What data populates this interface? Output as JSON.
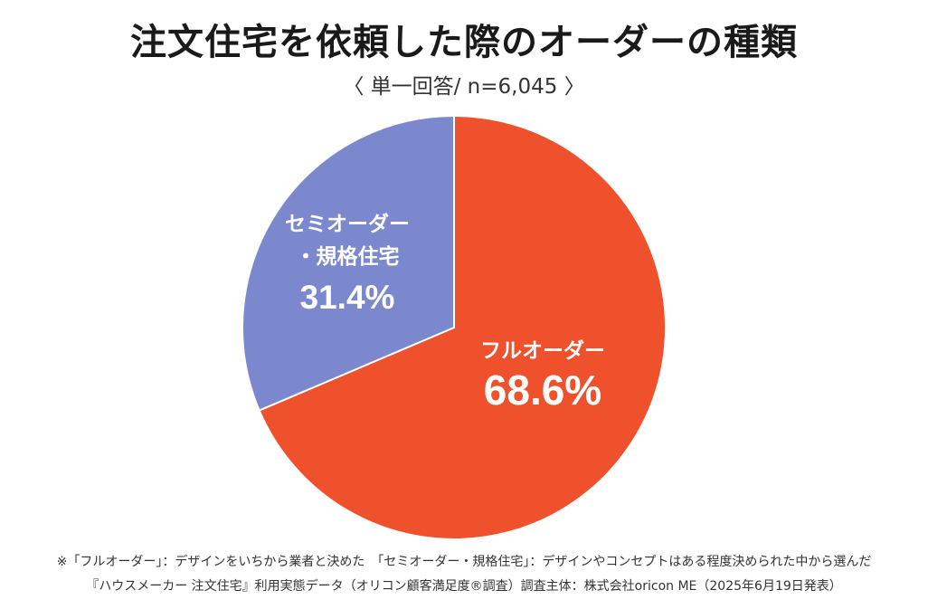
{
  "header": {
    "title": "注文住宅を依頼した際のオーダーの種類",
    "subtitle": "〈 単一回答/ n=6,045 〉"
  },
  "chart_data": {
    "type": "pie",
    "title": "注文住宅を依頼した際のオーダーの種類",
    "subtitle": "〈 単一回答/ n=6,045 〉",
    "slices": [
      {
        "label": "フルオーダー",
        "label_lines": [
          "フルオーダー"
        ],
        "value": 68.6,
        "value_label": "68.6%",
        "color": "#EE512B"
      },
      {
        "label": "セミオーダー・規格住宅",
        "label_lines": [
          "セミオーダー",
          "・規格住宅"
        ],
        "value": 31.4,
        "value_label": "31.4%",
        "color": "#7B88CD"
      }
    ],
    "start_angle": "12 o'clock",
    "direction": "clockwise",
    "label_color": "#FFFFFF",
    "slice_border_color": "#FFFFFF"
  },
  "footnotes": {
    "line1": "※「フルオーダー」：デザインをいちから業者と決めた　「セミオーダー・規格住宅」：デザインやコンセプトはある程度決められた中から選んだ",
    "line2": "『ハウスメーカー 注文住宅』利用実態データ（オリコン顧客満足度®調査）調査主体：株式会社oricon ME（2025年6月19日発表）"
  }
}
